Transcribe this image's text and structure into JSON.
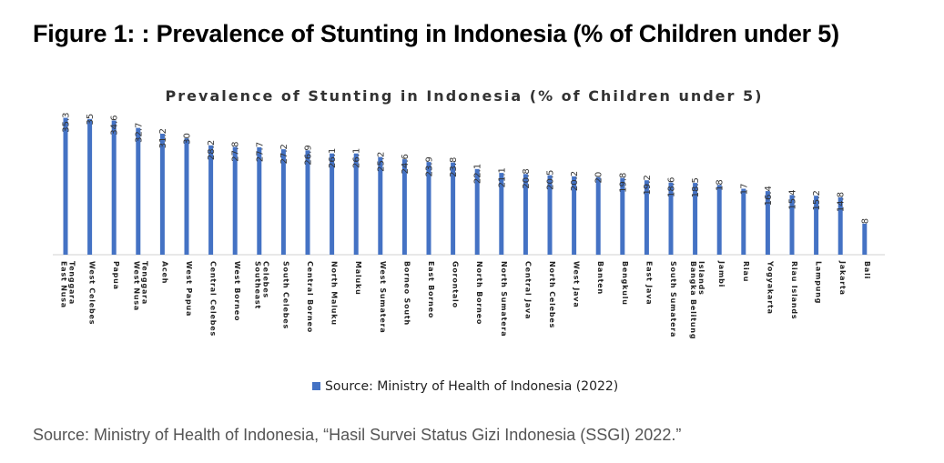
{
  "figure": {
    "title": "Figure 1: : Prevalence of Stunting in Indonesia (% of Children under 5)",
    "source_note": "Source: Ministry of Health of Indonesia, “Hasil Survei Status Gizi Indonesia (SSGI) 2022.”"
  },
  "chart_data": {
    "type": "bar",
    "title": "Prevalence of Stunting in Indonesia (% of Children under 5)",
    "xlabel": "",
    "ylabel": "",
    "ylim": [
      0,
      40
    ],
    "grid": false,
    "legend": "bottom-center",
    "bar_color": "#4472C4",
    "categories": [
      [
        "East Nusa",
        "Tenggara"
      ],
      [
        "West Celebes"
      ],
      [
        "Papua"
      ],
      [
        "West Nusa",
        "Tenggara"
      ],
      [
        "Aceh"
      ],
      [
        "West Papua"
      ],
      [
        "Central Celebes"
      ],
      [
        "West Borneo"
      ],
      [
        "Southeast",
        "Celebes"
      ],
      [
        "South Celebes"
      ],
      [
        "Central Borneo"
      ],
      [
        "North Maluku"
      ],
      [
        "Maluku"
      ],
      [
        "West Sumatera"
      ],
      [
        "Borneo South"
      ],
      [
        "East Borneo"
      ],
      [
        "Gorontalo"
      ],
      [
        "North Borneo"
      ],
      [
        "North Sumatera"
      ],
      [
        "Central Java"
      ],
      [
        "North Celebes"
      ],
      [
        "West Java"
      ],
      [
        "Banten"
      ],
      [
        "Bengkulu"
      ],
      [
        "East Java"
      ],
      [
        "South Sumatera"
      ],
      [
        "Bangka Belitung",
        "Islands"
      ],
      [
        "Jambi"
      ],
      [
        "Riau"
      ],
      [
        "Yogyakarta"
      ],
      [
        "Riau Islands"
      ],
      [
        "Lampung"
      ],
      [
        "Jakarta"
      ],
      [
        "Bali"
      ]
    ],
    "series": [
      {
        "name": "Source: Ministry of Health of Indonesia (2022)",
        "values": [
          35.3,
          35,
          34.6,
          32.7,
          31.2,
          30,
          28.2,
          27.8,
          27.7,
          27.2,
          26.9,
          26.1,
          26.1,
          25.2,
          24.6,
          23.9,
          23.8,
          22.1,
          21.1,
          20.8,
          20.5,
          20.2,
          20,
          19.8,
          19.2,
          18.6,
          18.5,
          18,
          17,
          16.4,
          15.4,
          15.2,
          14.8,
          8
        ]
      }
    ]
  }
}
